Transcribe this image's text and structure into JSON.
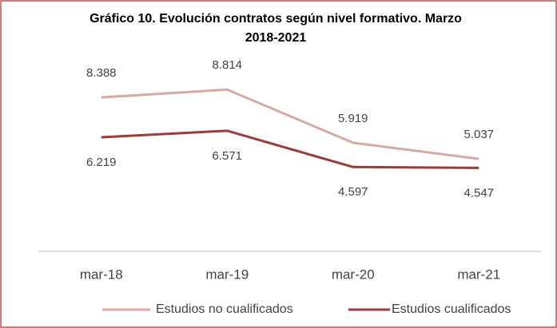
{
  "chart_data": {
    "type": "line",
    "title": "Gráfico 10. Evolución contratos según nivel formativo. Marzo 2018-2021",
    "categories": [
      "mar-18",
      "mar-19",
      "mar-20",
      "mar-21"
    ],
    "series": [
      {
        "name": "Estudios no cualificados",
        "color": "#d8a9a6",
        "values": [
          8388,
          8814,
          5919,
          5037
        ],
        "value_labels": [
          "8.388",
          "8.814",
          "5.919",
          "5.037"
        ]
      },
      {
        "name": "Estudios cualificados",
        "color": "#9c3b39",
        "values": [
          6219,
          6571,
          4597,
          4547
        ],
        "value_labels": [
          "6.219",
          "6.571",
          "4.597",
          "4.547"
        ]
      }
    ],
    "ylim": [
      0,
      10000
    ],
    "legend": "bottom"
  }
}
